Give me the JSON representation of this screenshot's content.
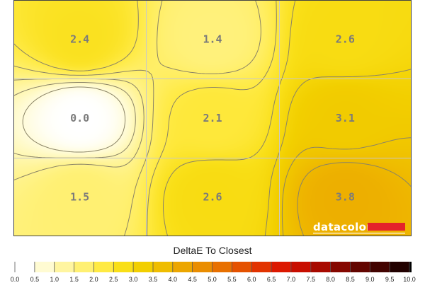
{
  "chart_data": {
    "type": "heatmap",
    "title": "DeltaE To Closest",
    "grid": {
      "rows": 3,
      "cols": 3,
      "values": [
        [
          2.4,
          1.4,
          2.6
        ],
        [
          0.0,
          2.1,
          3.1
        ],
        [
          1.5,
          2.6,
          3.8
        ]
      ],
      "value_labels": [
        [
          "2.4",
          "1.4",
          "2.6"
        ],
        [
          "0.0",
          "2.1",
          "3.1"
        ],
        [
          "1.5",
          "2.6",
          "3.8"
        ]
      ]
    },
    "colorbar": {
      "min": 0.0,
      "max": 10.0,
      "ticks": [
        "0.0",
        "0.5",
        "1.0",
        "1.5",
        "2.0",
        "2.5",
        "3.0",
        "3.5",
        "4.0",
        "4.5",
        "5.0",
        "5.5",
        "6.0",
        "6.5",
        "7.0",
        "7.5",
        "8.0",
        "8.5",
        "9.0",
        "9.5",
        "10.0"
      ],
      "colors": [
        "#ffffff",
        "#fffbd2",
        "#fff5a0",
        "#fff072",
        "#ffea43",
        "#f9df17",
        "#f2cf00",
        "#efbd00",
        "#eca600",
        "#ea8d00",
        "#e87000",
        "#e55200",
        "#e23300",
        "#dc1800",
        "#c80e00",
        "#a80a00",
        "#850700",
        "#630500",
        "#420300",
        "#220100",
        "#000000"
      ]
    }
  },
  "watermark": {
    "brand": "datacolor",
    "bar_color": "#e4222a"
  }
}
